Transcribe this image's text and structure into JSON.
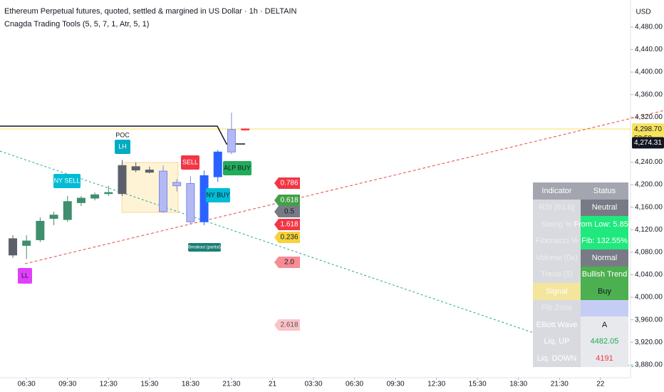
{
  "chart_data": {
    "type": "candlestick",
    "title": "Ethereum Perpetual futures, quoted, settled & margined in US Dollar · 1h · DELTAIN",
    "subtitle": "Cnagda Trading Tools (5, 5, 7, 1, Atr, 5, 1)",
    "currency": "USD",
    "x": [
      0,
      1,
      2,
      3,
      4,
      5,
      6,
      7,
      8,
      9,
      10,
      11,
      12,
      13,
      14,
      15,
      16,
      17
    ],
    "open": [
      4104,
      4092,
      4102,
      4140,
      4138,
      4168,
      4176,
      4184,
      4184,
      4232,
      4226,
      4224,
      4198,
      4202,
      4134,
      4214,
      4258,
      4298
    ],
    "high": [
      4110,
      4110,
      4142,
      4152,
      4180,
      4180,
      4186,
      4198,
      4244,
      4240,
      4232,
      4234,
      4210,
      4215,
      4225,
      4262,
      4328,
      4300
    ],
    "low": [
      4070,
      4068,
      4098,
      4128,
      4134,
      4162,
      4172,
      4180,
      4180,
      4222,
      4220,
      4150,
      4188,
      4130,
      4128,
      4205,
      4254,
      4296
    ],
    "close": [
      4075,
      4100,
      4135,
      4146,
      4170,
      4176,
      4182,
      4186,
      4234,
      4226,
      4222,
      4152,
      4204,
      4134,
      4216,
      4258,
      4298,
      4299
    ],
    "colors": [
      "#5d606b",
      "#3f8f6e",
      "#3f8f6e",
      "#3f8f6e",
      "#3f8f6e",
      "#3f8f6e",
      "#3f8f6e",
      "#3f8f6e",
      "#5d606b",
      "#5d606b",
      "#5d606b",
      "#b3b9f5",
      "#b3b9f5",
      "#b3b9f5",
      "#2962ff",
      "#2962ff",
      "#b3b9f5",
      "#f23645"
    ],
    "xlim": [
      -0.94,
      45.2
    ],
    "xticks": [
      {
        "value": 1,
        "label": "06:30"
      },
      {
        "value": 4,
        "label": "09:30"
      },
      {
        "value": 7,
        "label": "12:30"
      },
      {
        "value": 10,
        "label": "15:30"
      },
      {
        "value": 13,
        "label": "18:30"
      },
      {
        "value": 16,
        "label": "21:30"
      },
      {
        "value": 19,
        "label": "21"
      },
      {
        "value": 22,
        "label": "03:30"
      },
      {
        "value": 25,
        "label": "06:30"
      },
      {
        "value": 28,
        "label": "09:30"
      },
      {
        "value": 31,
        "label": "12:30"
      },
      {
        "value": 34,
        "label": "15:30"
      },
      {
        "value": 37,
        "label": "18:30"
      },
      {
        "value": 40,
        "label": "21:30"
      },
      {
        "value": 43,
        "label": "22"
      }
    ],
    "ylim": [
      3857,
      4528
    ],
    "yticks": [
      {
        "value": 4480,
        "label": "4,480.00"
      },
      {
        "value": 4440,
        "label": "4,440.00"
      },
      {
        "value": 4400,
        "label": "4,400.00"
      },
      {
        "value": 4360,
        "label": "4,360.00"
      },
      {
        "value": 4320,
        "label": "4,320.00"
      },
      {
        "value": 4240,
        "label": "4,240.00"
      },
      {
        "value": 4200,
        "label": "4,200.00"
      },
      {
        "value": 4160,
        "label": "4,160.00"
      },
      {
        "value": 4120,
        "label": "4,120.00"
      },
      {
        "value": 4080,
        "label": "4,080.00"
      },
      {
        "value": 4040,
        "label": "4,040.00"
      },
      {
        "value": 4000,
        "label": "4,000.00"
      },
      {
        "value": 3960,
        "label": "3,960.00"
      },
      {
        "value": 3920,
        "label": "3,920.00"
      },
      {
        "value": 3880,
        "label": "3,880.00"
      }
    ],
    "price_tags": [
      {
        "value": 4298.7,
        "label": "4,298.70"
      },
      {
        "value": 4274.31,
        "label": "4,274.31"
      }
    ],
    "countdown": "58:58",
    "annotations": [
      "POC",
      "LH",
      "NY SELL",
      "SELL",
      "NY BUY",
      "ALP BUY",
      "LL",
      "Breakout (partial)"
    ],
    "fib_labels": [
      "0.786",
      "0.618",
      "0.5",
      "1.618",
      "0.236",
      "2.0",
      "2.618"
    ]
  },
  "table": {
    "header": [
      "Indicator",
      "Status"
    ],
    "rows": [
      [
        "RSI (61.6)",
        "Neutral"
      ],
      [
        "Swing %",
        "From Low: 5.85%"
      ],
      [
        "Fibonacci %",
        "Fib: 132.55%"
      ],
      [
        "Volume (0x)",
        "Normal"
      ],
      [
        "Trend (5)",
        "Bullish Trend"
      ],
      [
        "Signal",
        "Buy"
      ],
      [
        "Fib Zone"
      ],
      [
        "Elliott Wave",
        "A"
      ],
      [
        "Liq. UP",
        "4482.05"
      ],
      [
        "Liq. DOWN",
        "4191"
      ]
    ]
  }
}
